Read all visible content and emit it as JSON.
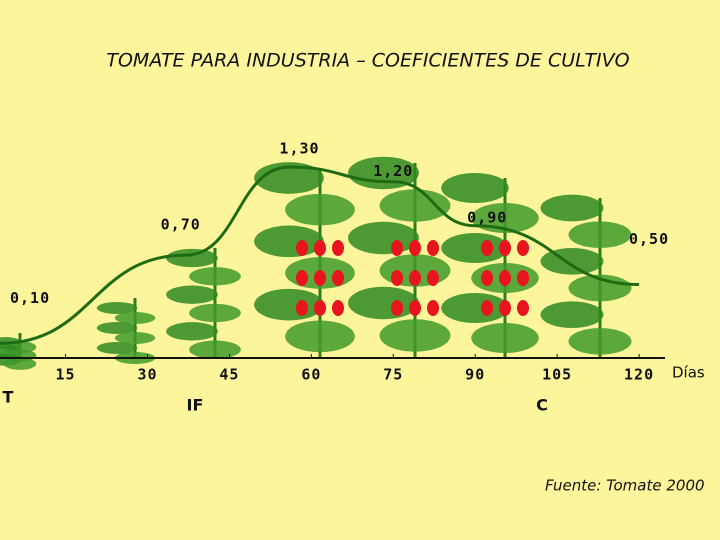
{
  "chart_data": {
    "type": "line",
    "title": "TOMATE PARA INDUSTRIA – COEFICIENTES DE CULTIVO",
    "x": [
      3,
      37,
      56,
      75,
      90,
      120
    ],
    "values": [
      0.1,
      0.7,
      1.3,
      1.2,
      0.9,
      0.5
    ],
    "value_labels": [
      "0,10",
      "0,70",
      "1,30",
      "1,20",
      "0,90",
      "0,50"
    ],
    "color": "#1e6b12",
    "xlim": [
      3,
      122
    ],
    "xticks": [
      15,
      30,
      45,
      60,
      75,
      90,
      105,
      120
    ],
    "ylim": [
      0,
      1.45
    ],
    "x_label": "Días",
    "stages": [
      "T",
      "IF",
      "C"
    ],
    "source": "Fuente: Tomate 2000"
  }
}
